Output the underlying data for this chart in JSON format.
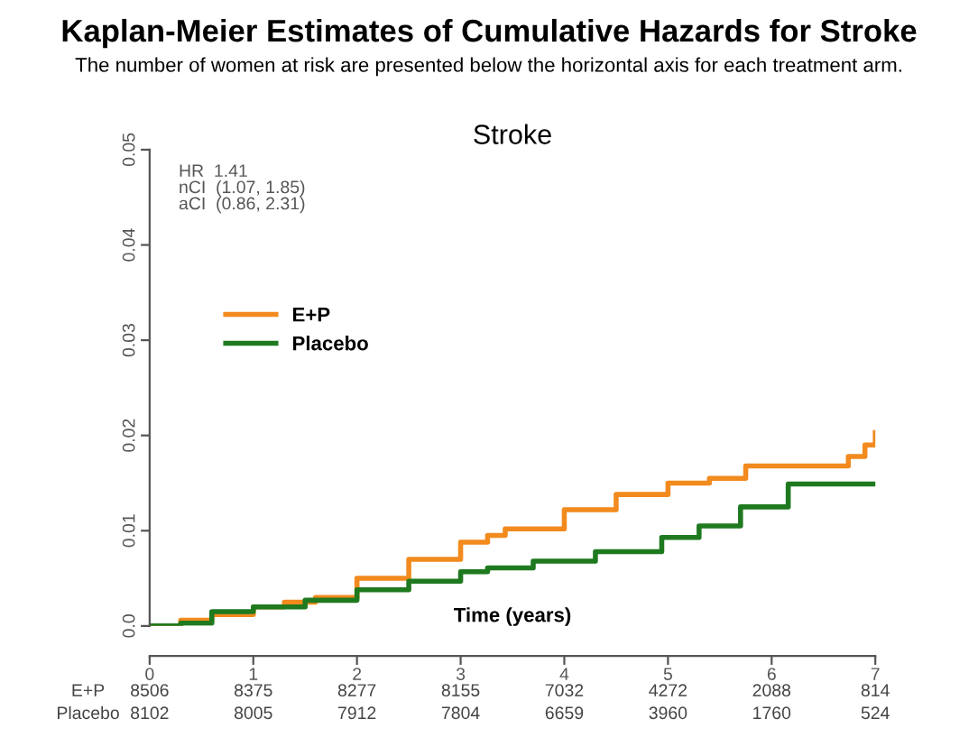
{
  "chart_data": {
    "type": "step",
    "title": "Kaplan-Meier Estimates of Cumulative Hazards for Stroke",
    "subtitle": "The number of women at risk are presented below the horizontal axis for each treatment arm.",
    "xlabel": "Time (years)",
    "annotations": [
      "Stroke",
      "HR  1.41\nnCI  (1.07, 1.85)\naCI  (0.86, 2.31)",
      "E+P",
      "8506",
      "8375",
      "8277",
      "8155",
      "7032",
      "4272",
      "2088",
      "814",
      "Placebo",
      "8102",
      "8005",
      "7912",
      "7804",
      "6659",
      "3960",
      "1760",
      "524"
    ],
    "series": [
      {
        "name": "E+P",
        "color": "#f28a1e",
        "x": [
          0,
          0.3,
          0.6,
          1.0,
          1.3,
          1.6,
          2.0,
          2.5,
          3.0,
          3.26,
          3.43,
          4.0,
          4.5,
          5.0,
          5.4,
          5.75,
          6.45,
          6.74,
          6.9,
          7.0
        ],
        "values": [
          0,
          0.0006,
          0.0012,
          0.002,
          0.0025,
          0.003,
          0.005,
          0.007,
          0.0088,
          0.0095,
          0.0102,
          0.0122,
          0.0138,
          0.015,
          0.0155,
          0.0168,
          0.0168,
          0.0178,
          0.019,
          0.0203
        ]
      },
      {
        "name": "Placebo",
        "color": "#1f7a1f",
        "x": [
          0,
          0.3,
          0.6,
          1.0,
          1.5,
          2.0,
          2.5,
          3.0,
          3.26,
          3.7,
          4.3,
          4.94,
          5.3,
          5.7,
          6.16,
          7.0
        ],
        "values": [
          0,
          0.0003,
          0.0015,
          0.002,
          0.0027,
          0.0038,
          0.0047,
          0.0057,
          0.0061,
          0.0068,
          0.0078,
          0.0093,
          0.0105,
          0.0125,
          0.0149,
          0.0149
        ]
      }
    ],
    "xlim": [
      0,
      7
    ],
    "xticks": [
      0,
      1,
      2,
      3,
      4,
      5,
      6,
      7
    ],
    "ylim": [
      0,
      0.05
    ],
    "yticks": [
      {
        "value": 0,
        "label": "0.0"
      },
      0.01,
      0.02,
      0.03,
      0.04,
      0.05
    ],
    "legend": "center left",
    "grid": false,
    "line_style": "solid",
    "marker": "none"
  }
}
